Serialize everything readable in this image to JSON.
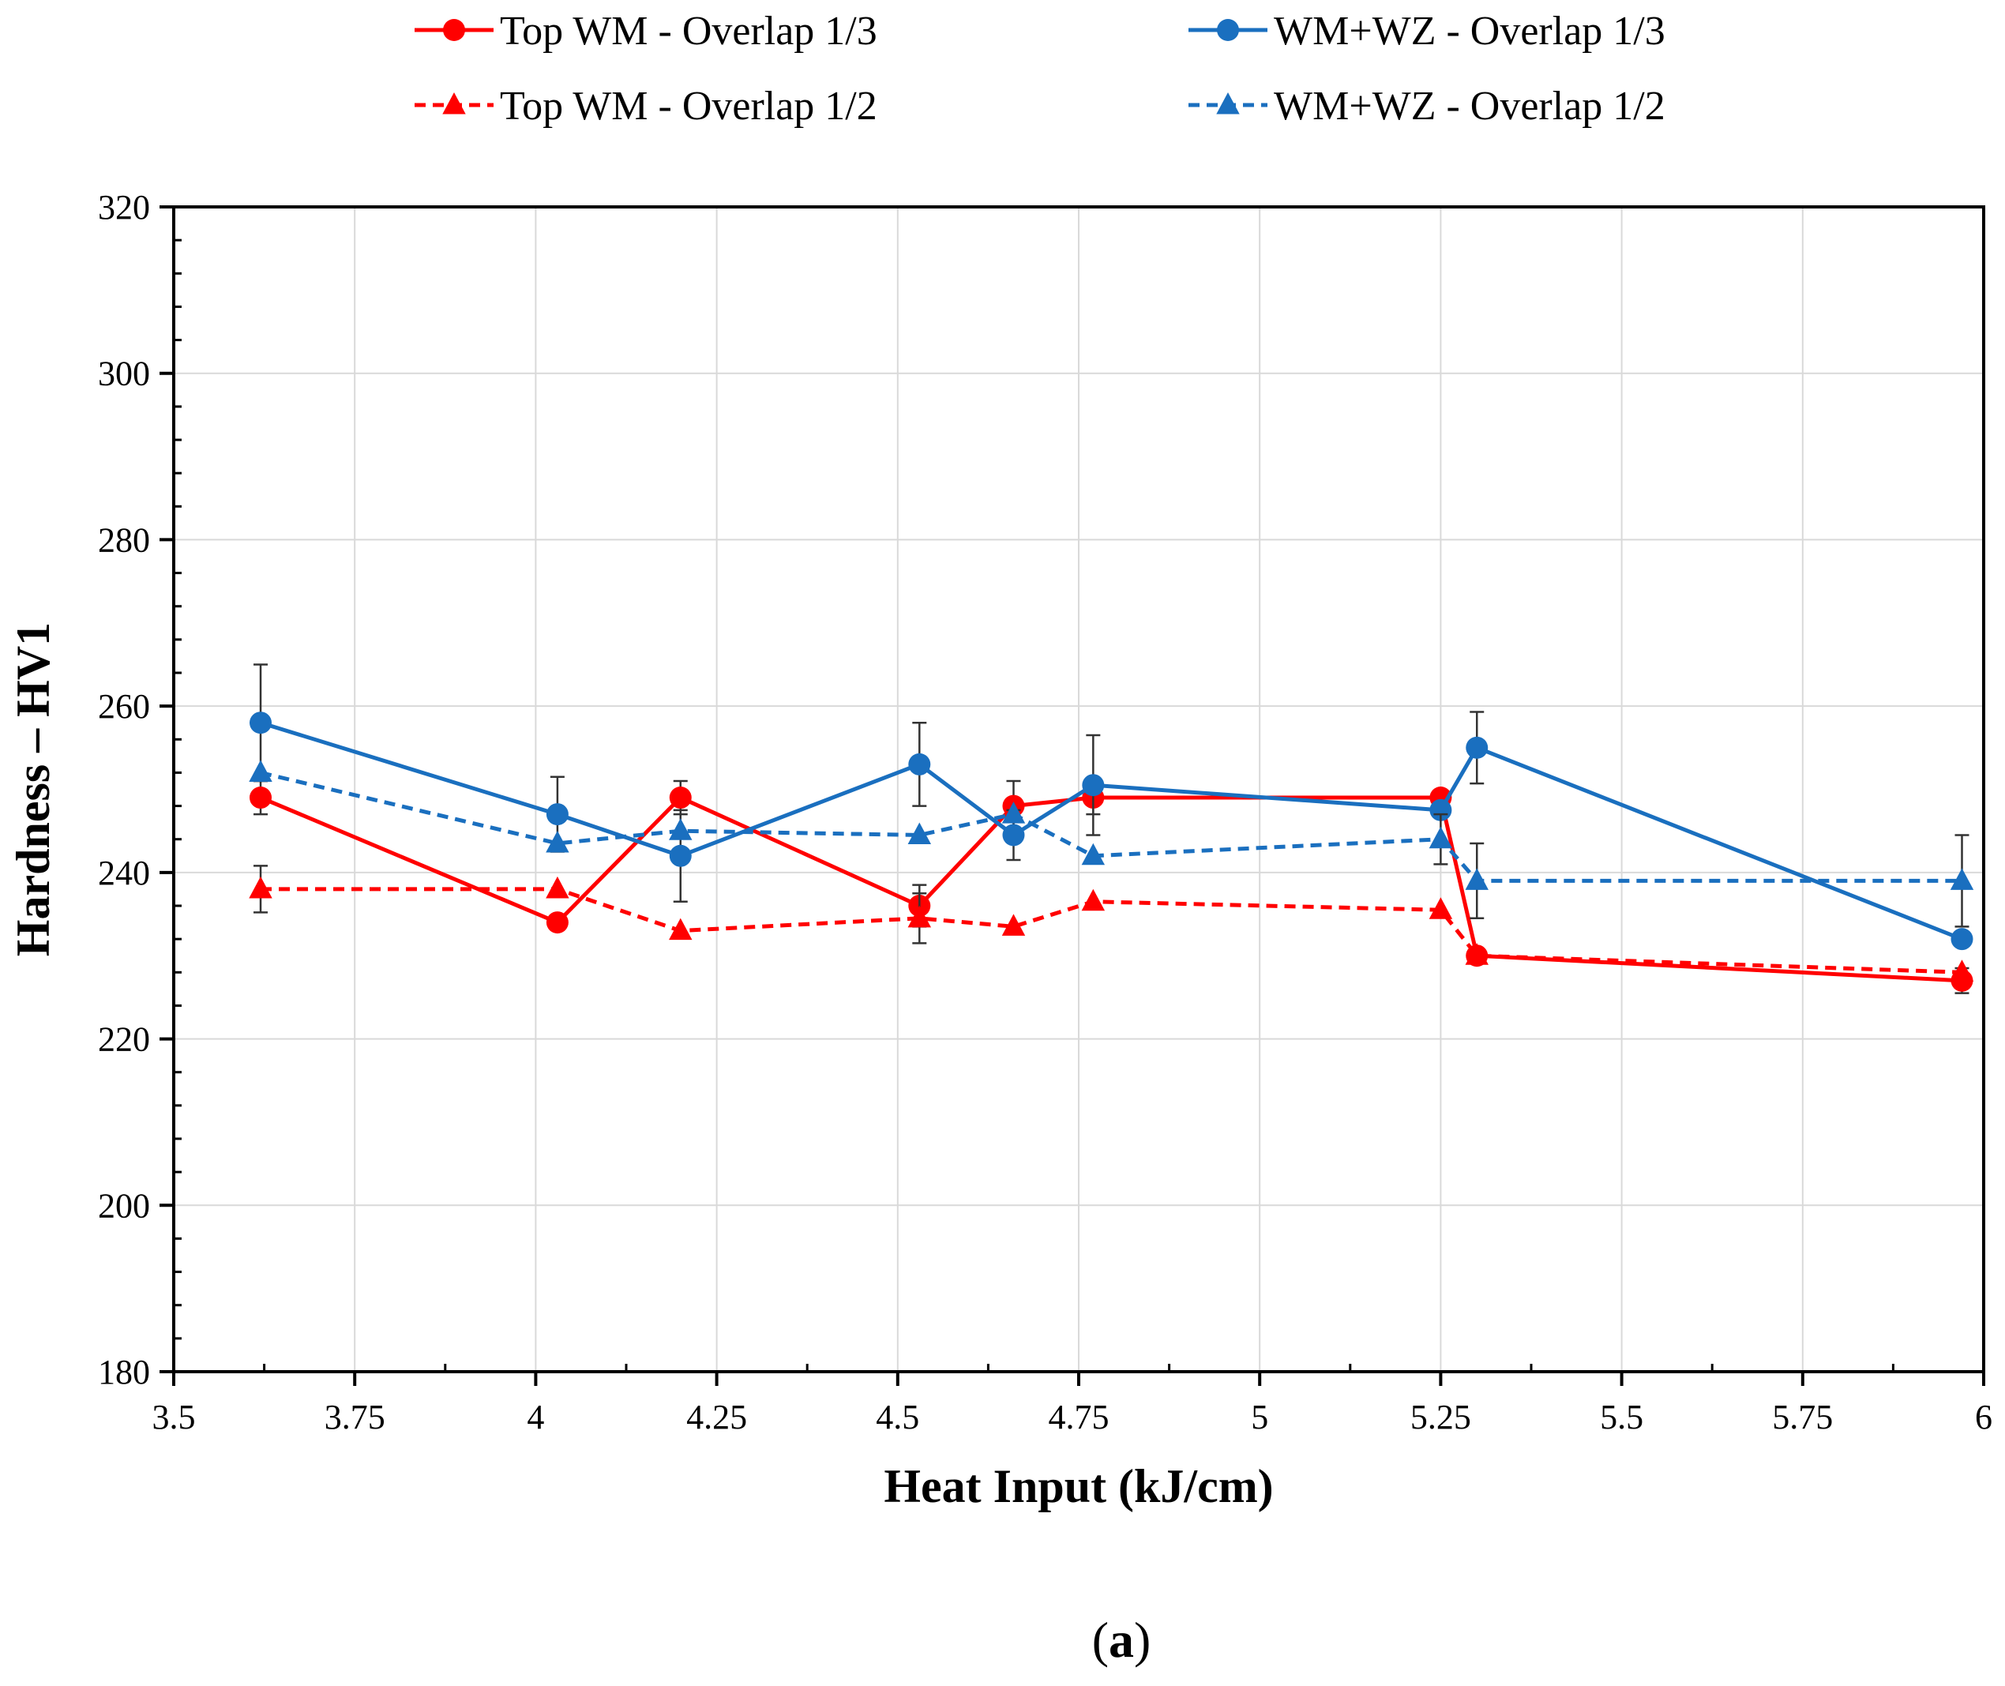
{
  "chart_data": {
    "type": "line",
    "title": "",
    "xlabel": "Heat Input (kJ/cm)",
    "ylabel": "Hardness – HV1",
    "xlim": [
      3.5,
      6
    ],
    "ylim": [
      180,
      320
    ],
    "xticks": [
      3.5,
      3.75,
      4,
      4.25,
      4.5,
      4.75,
      5,
      5.25,
      5.5,
      5.75,
      6
    ],
    "xtick_labels": [
      "3.5",
      "3.75",
      "4",
      "4.25",
      "4.5",
      "4.75",
      "5",
      "5.25",
      "5.5",
      "5.75",
      "6"
    ],
    "yticks": [
      180,
      200,
      220,
      240,
      260,
      280,
      300,
      320
    ],
    "ytick_labels": [
      "180",
      "200",
      "220",
      "240",
      "260",
      "280",
      "300",
      "320"
    ],
    "grid": true,
    "legend_position": "top",
    "caption_parts": [
      "(",
      "a",
      ")"
    ],
    "series": [
      {
        "name": "Top WM - Overlap 1/3",
        "color": "#ff0000",
        "marker": "circle",
        "dash": "solid",
        "x": [
          3.62,
          4.03,
          4.2,
          4.53,
          4.66,
          4.77,
          5.25,
          5.3,
          5.97
        ],
        "y": [
          249,
          234,
          249,
          236,
          248,
          249,
          249,
          230,
          227
        ],
        "err": [
          2,
          0,
          2,
          2.5,
          3,
          2,
          0,
          0,
          1.5
        ]
      },
      {
        "name": "Top WM - Overlap 1/2",
        "color": "#ff0000",
        "marker": "triangle",
        "dash": "dashed",
        "x": [
          3.62,
          4.03,
          4.2,
          4.53,
          4.66,
          4.77,
          5.25,
          5.3,
          5.97
        ],
        "y": [
          238,
          238,
          233,
          234.5,
          233.5,
          236.5,
          235.5,
          230,
          228
        ],
        "err": [
          2.8,
          0,
          0,
          3,
          0,
          0,
          0,
          0,
          0
        ]
      },
      {
        "name": "WM+WZ - Overlap 1/3",
        "color": "#1a6fbf",
        "marker": "circle",
        "dash": "solid",
        "x": [
          3.62,
          4.03,
          4.2,
          4.53,
          4.66,
          4.77,
          5.25,
          5.3,
          5.97
        ],
        "y": [
          258,
          247,
          242,
          253,
          244.5,
          250.5,
          247.5,
          255,
          232
        ],
        "err": [
          7,
          4.5,
          5.5,
          5,
          3,
          6,
          0,
          4.3,
          0
        ]
      },
      {
        "name": "WM+WZ - Overlap 1/2",
        "color": "#1a6fbf",
        "marker": "triangle",
        "dash": "dashed",
        "x": [
          3.62,
          4.03,
          4.2,
          4.53,
          4.66,
          4.77,
          5.25,
          5.3,
          5.97
        ],
        "y": [
          252,
          243.5,
          245,
          244.5,
          247,
          242,
          244,
          239,
          239
        ],
        "err": [
          0,
          0,
          0,
          0,
          0,
          0,
          3,
          4.5,
          5.5
        ]
      }
    ]
  }
}
